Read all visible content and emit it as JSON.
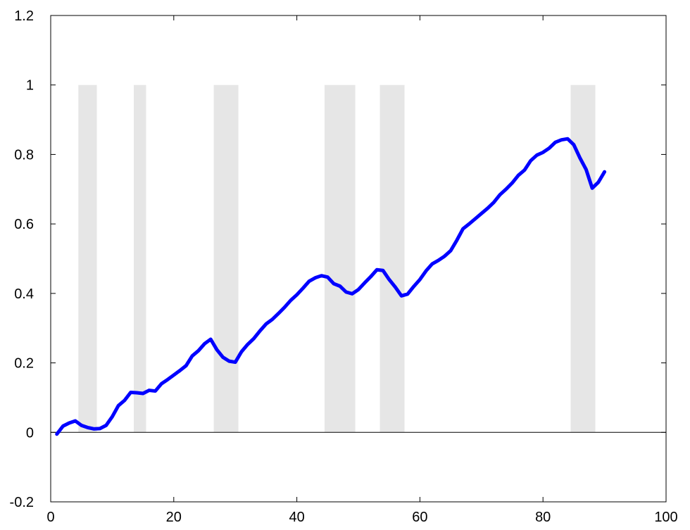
{
  "chart_data": {
    "type": "line",
    "title": "",
    "xlabel": "",
    "ylabel": "",
    "xlim": [
      0,
      100
    ],
    "ylim": [
      -0.2,
      1.2
    ],
    "x_ticks": [
      0,
      20,
      40,
      60,
      80,
      100
    ],
    "y_ticks": [
      -0.2,
      0,
      0.2,
      0.4,
      0.6,
      0.8,
      1,
      1.2
    ],
    "x_tick_labels": [
      "0",
      "20",
      "40",
      "60",
      "80",
      "100"
    ],
    "y_tick_labels": [
      "-0.2",
      "0",
      "0.2",
      "0.4",
      "0.6",
      "0.8",
      "1",
      "1.2"
    ],
    "grid": false,
    "zero_line": true,
    "shaded_regions": [
      {
        "x0": 4.5,
        "x1": 7.5,
        "y0": 0,
        "y1": 1
      },
      {
        "x0": 13.5,
        "x1": 15.5,
        "y0": 0,
        "y1": 1
      },
      {
        "x0": 26.5,
        "x1": 30.5,
        "y0": 0,
        "y1": 1
      },
      {
        "x0": 44.5,
        "x1": 49.5,
        "y0": 0,
        "y1": 1
      },
      {
        "x0": 53.5,
        "x1": 57.5,
        "y0": 0,
        "y1": 1
      },
      {
        "x0": 84.5,
        "x1": 88.5,
        "y0": 0,
        "y1": 1
      }
    ],
    "series": [
      {
        "x": [
          1,
          2,
          3,
          4,
          5,
          6,
          7,
          8,
          9,
          10,
          11,
          12,
          13,
          14,
          15,
          16,
          17,
          18,
          19,
          20,
          21,
          22,
          23,
          24,
          25,
          26,
          27,
          28,
          29,
          30,
          31,
          32,
          33,
          34,
          35,
          36,
          37,
          38,
          39,
          40,
          41,
          42,
          43,
          44,
          45,
          46,
          47,
          48,
          49,
          50,
          51,
          52,
          53,
          54,
          55,
          56,
          57,
          58,
          59,
          60,
          61,
          62,
          63,
          64,
          65,
          66,
          67,
          68,
          69,
          70,
          71,
          72,
          73,
          74,
          75,
          76,
          77,
          78,
          79,
          80,
          81,
          82,
          83,
          84,
          85,
          86,
          87,
          88,
          89,
          90
        ],
        "values": [
          -0.005,
          0.018,
          0.027,
          0.033,
          0.02,
          0.014,
          0.01,
          0.011,
          0.02,
          0.045,
          0.077,
          0.092,
          0.115,
          0.114,
          0.112,
          0.121,
          0.119,
          0.14,
          0.152,
          0.165,
          0.178,
          0.192,
          0.22,
          0.235,
          0.255,
          0.268,
          0.238,
          0.216,
          0.205,
          0.202,
          0.232,
          0.253,
          0.27,
          0.292,
          0.312,
          0.325,
          0.342,
          0.36,
          0.38,
          0.396,
          0.415,
          0.435,
          0.445,
          0.451,
          0.447,
          0.428,
          0.421,
          0.404,
          0.399,
          0.411,
          0.43,
          0.448,
          0.468,
          0.466,
          0.44,
          0.418,
          0.393,
          0.398,
          0.42,
          0.44,
          0.465,
          0.485,
          0.495,
          0.507,
          0.523,
          0.553,
          0.586,
          0.6,
          0.615,
          0.63,
          0.645,
          0.662,
          0.684,
          0.7,
          0.718,
          0.74,
          0.755,
          0.782,
          0.798,
          0.806,
          0.818,
          0.835,
          0.842,
          0.845,
          0.828,
          0.79,
          0.757,
          0.703,
          0.72,
          0.75
        ],
        "color": "#0000ff"
      }
    ],
    "colors": {
      "line": "#0000ff",
      "shade": "#e6e6e6",
      "axes": "#000000"
    }
  }
}
